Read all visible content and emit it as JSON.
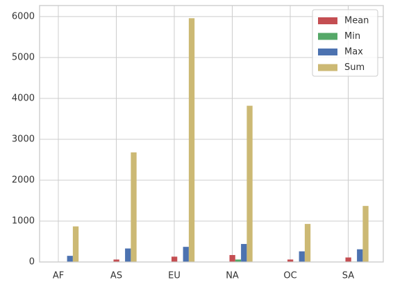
{
  "chart_data": {
    "type": "bar",
    "categories": [
      "AF",
      "AS",
      "EU",
      "NA",
      "OC",
      "SA"
    ],
    "series": [
      {
        "name": "Mean",
        "color": "#c44e52",
        "values": [
          6,
          60,
          130,
          170,
          60,
          110
        ]
      },
      {
        "name": "Min",
        "color": "#55a868",
        "values": [
          0,
          1,
          3,
          60,
          5,
          10
        ]
      },
      {
        "name": "Max",
        "color": "#4c72b0",
        "values": [
          150,
          330,
          370,
          440,
          260,
          310
        ]
      },
      {
        "name": "Sum",
        "color": "#ccb974",
        "values": [
          870,
          2680,
          5960,
          3820,
          930,
          1370
        ]
      }
    ],
    "ylim": [
      0,
      6270
    ],
    "yticks": [
      0,
      1000,
      2000,
      3000,
      4000,
      5000,
      6000
    ],
    "grid": true,
    "legend": "upper right"
  }
}
